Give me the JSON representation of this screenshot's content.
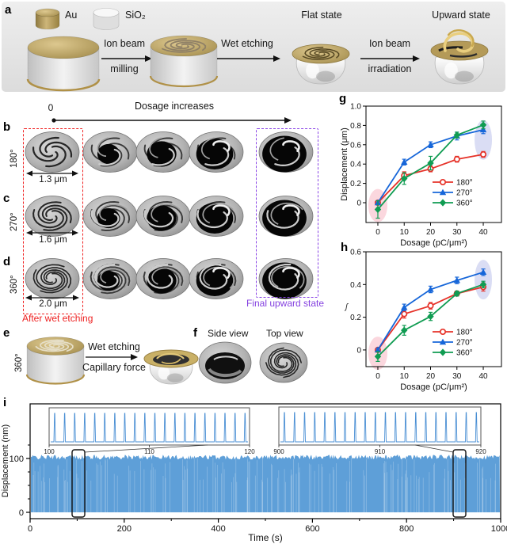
{
  "panels": {
    "a": "a",
    "b": "b",
    "c": "c",
    "d": "d",
    "e": "e",
    "f": "f",
    "g": "g",
    "h": "h",
    "i": "i"
  },
  "panel_a": {
    "au": "Au",
    "sio2": "SiO₂",
    "step1a": "Ion beam",
    "step1b": "milling",
    "step2": "Wet etching",
    "flat": "Flat state",
    "step3a": "Ion beam",
    "step3b": "irradiation",
    "upward": "Upward state"
  },
  "dosage_axis": {
    "zero": "0",
    "label": "Dosage increases"
  },
  "rows": {
    "b": {
      "angle": "180°",
      "size": "1.3 μm"
    },
    "c": {
      "angle": "270°",
      "size": "1.6 μm"
    },
    "d": {
      "angle": "360°",
      "size": "2.0 μm"
    }
  },
  "annotations": {
    "wet": "After wet etching",
    "final": "Final upward state"
  },
  "panel_e": {
    "angle": "360°",
    "arrow_top": "Wet etching",
    "arrow_bottom": "Capillary force"
  },
  "panel_f": {
    "side": "Side view",
    "top": "Top view"
  },
  "colors": {
    "red": "#e63229",
    "blue": "#1666d9",
    "green": "#109c52",
    "osc_blue": "#5e9fd8",
    "gold": "#b3995c",
    "pink_highlight": "rgba(247,176,190,0.5)",
    "lavender_highlight": "rgba(188,193,235,0.55)"
  },
  "chart_data": [
    {
      "id": "g",
      "type": "line",
      "xlabel": "Dosage (pC/μm²)",
      "ylabel": "Displacement (μm)",
      "x": [
        0,
        10,
        20,
        30,
        40
      ],
      "xticks": [
        0,
        10,
        20,
        30,
        40
      ],
      "yticks": [
        0,
        0.2,
        0.4,
        0.6,
        0.8,
        1.0
      ],
      "xlim": [
        -4.5,
        46.9
      ],
      "ylim": [
        -0.205,
        1.0
      ],
      "legend_position": "lower right",
      "grid": false,
      "series": [
        {
          "name": "180°",
          "color": "red",
          "marker": "circle-open",
          "values": [
            0,
            0.28,
            0.35,
            0.45,
            0.5
          ],
          "errors": [
            0.02,
            0.04,
            0.03,
            0.03,
            0.03
          ]
        },
        {
          "name": "270°",
          "color": "blue",
          "marker": "triangle",
          "values": [
            0,
            0.42,
            0.6,
            0.69,
            0.755
          ],
          "errors": [
            0.02,
            0.03,
            0.03,
            0.04,
            0.04
          ]
        },
        {
          "name": "360°",
          "color": "green",
          "marker": "diamond",
          "values": [
            -0.07,
            0.25,
            0.41,
            0.7,
            0.805
          ],
          "errors": [
            0.09,
            0.06,
            0.07,
            0.03,
            0.04
          ]
        }
      ],
      "highlights": [
        {
          "x": 0,
          "y": -0.03,
          "color": "pink"
        },
        {
          "x": 40,
          "y": 0.65,
          "color": "lavender"
        }
      ]
    },
    {
      "id": "h",
      "type": "line",
      "xlabel": "Dosage (pC/μm²)",
      "ylabel_fragment": "ʃ",
      "x": [
        0,
        10,
        20,
        30,
        40
      ],
      "xticks": [
        0,
        10,
        20,
        30,
        40
      ],
      "yticks": [
        0,
        0.2,
        0.4,
        0.6
      ],
      "xlim": [
        -4.5,
        46.9
      ],
      "ylim": [
        -0.102,
        0.6
      ],
      "legend_position": "lower right",
      "grid": false,
      "series": [
        {
          "name": "180°",
          "color": "red",
          "marker": "circle-open",
          "values": [
            0,
            0.22,
            0.27,
            0.345,
            0.385
          ],
          "errors": [
            0.01,
            0.025,
            0.02,
            0.015,
            0.025
          ]
        },
        {
          "name": "270°",
          "color": "blue",
          "marker": "triangle",
          "values": [
            0,
            0.26,
            0.37,
            0.425,
            0.475
          ],
          "errors": [
            0.01,
            0.02,
            0.02,
            0.02,
            0.02
          ]
        },
        {
          "name": "360°",
          "color": "green",
          "marker": "diamond",
          "values": [
            -0.04,
            0.12,
            0.205,
            0.345,
            0.4
          ],
          "errors": [
            0.03,
            0.03,
            0.025,
            0.015,
            0.02
          ]
        }
      ],
      "highlights": [
        {
          "x": 0,
          "y": -0.02,
          "color": "pink"
        },
        {
          "x": 40,
          "y": 0.43,
          "color": "lavender"
        }
      ]
    },
    {
      "id": "i",
      "type": "oscillation",
      "xlabel": "Time (s)",
      "ylabel": "Displacement (nm)",
      "xlim": [
        0,
        1000
      ],
      "xticks": [
        0,
        200,
        400,
        600,
        800,
        1000
      ],
      "yticks": [
        0,
        100
      ],
      "peak_nm": 105,
      "baseline_nm": 0,
      "period_s": 1,
      "insets": [
        {
          "xlim": [
            100,
            120
          ],
          "xticks": [
            100,
            110,
            120
          ],
          "n_spikes": 20
        },
        {
          "xlim": [
            900,
            920
          ],
          "xticks": [
            900,
            910,
            920
          ],
          "n_spikes": 20
        }
      ],
      "zoom_box_times_s": [
        100,
        910
      ]
    }
  ]
}
